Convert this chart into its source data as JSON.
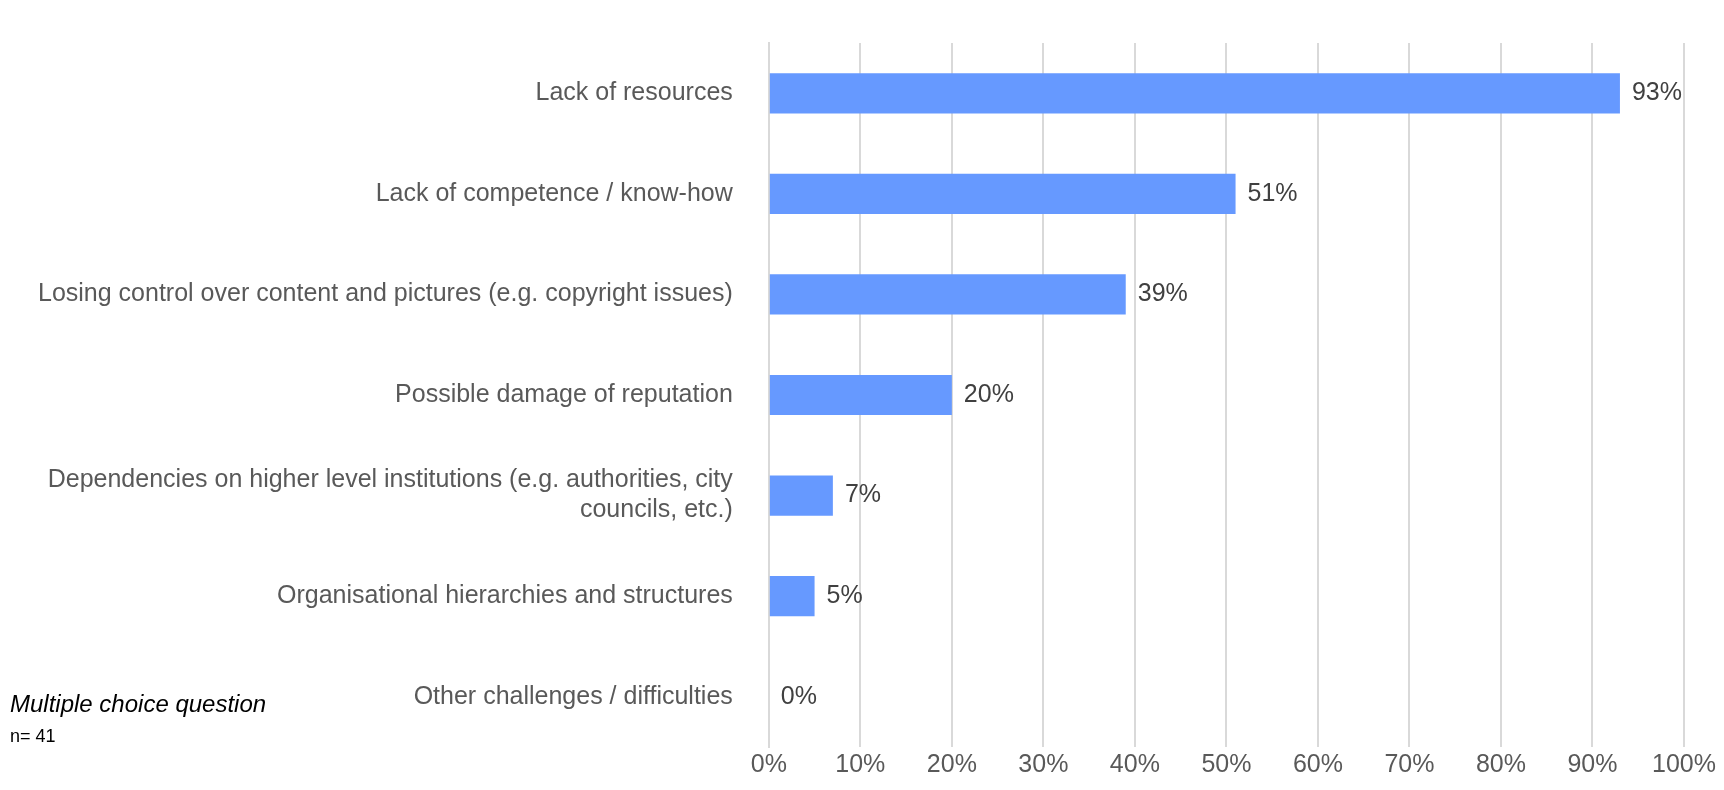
{
  "chart_data": {
    "type": "bar",
    "orientation": "horizontal",
    "categories": [
      "Lack of resources",
      "Lack of competence / know-how",
      "Losing control over content and pictures (e.g. copyright issues)",
      "Possible damage of reputation",
      "Dependencies on higher level institutions (e.g. authorities, city councils, etc.)",
      "Organisational hierarchies and structures",
      "Other challenges / difficulties"
    ],
    "values": [
      93,
      51,
      39,
      20,
      7,
      5,
      0
    ],
    "value_labels": [
      "93%",
      "51%",
      "39%",
      "20%",
      "7%",
      "5%",
      "0%"
    ],
    "color": "#6699ff",
    "xlim": [
      0,
      100
    ],
    "xticks": [
      {
        "value": 0,
        "label": "0%"
      },
      {
        "value": 10,
        "label": "10%"
      },
      {
        "value": 20,
        "label": "20%"
      },
      {
        "value": 30,
        "label": "30%"
      },
      {
        "value": 40,
        "label": "40%"
      },
      {
        "value": 50,
        "label": "50%"
      },
      {
        "value": 60,
        "label": "60%"
      },
      {
        "value": 70,
        "label": "70%"
      },
      {
        "value": 80,
        "label": "80%"
      },
      {
        "value": 90,
        "label": "90%"
      },
      {
        "value": 100,
        "label": "100%"
      }
    ],
    "grid": "x",
    "annotations": [
      "Multiple choice question",
      "n= 41"
    ]
  }
}
